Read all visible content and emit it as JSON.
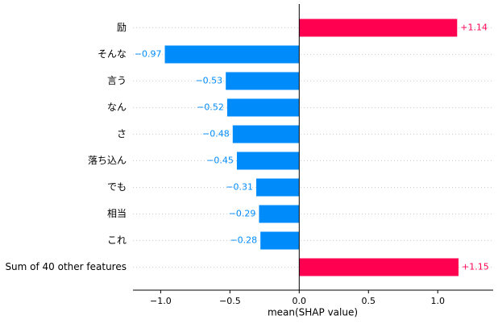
{
  "chart_data": {
    "type": "bar",
    "orientation": "horizontal",
    "categories": [
      "励",
      "そんな",
      "言う",
      "なん",
      "さ",
      "落ち込ん",
      "でも",
      "相当",
      "これ",
      "Sum of 40 other features"
    ],
    "values": [
      1.14,
      -0.97,
      -0.53,
      -0.52,
      -0.48,
      -0.45,
      -0.31,
      -0.29,
      -0.28,
      1.15
    ],
    "value_labels": [
      "+1.14",
      "−0.97",
      "−0.53",
      "−0.52",
      "−0.48",
      "−0.45",
      "−0.31",
      "−0.29",
      "−0.28",
      "+1.15"
    ],
    "color_positive": "#ff0051",
    "color_negative": "#008bfb",
    "xlabel": "mean(SHAP value)",
    "xlim": [
      -1.2,
      1.4
    ],
    "xticks": [
      {
        "value": -1.0,
        "label": "−1.0"
      },
      {
        "value": -0.5,
        "label": "−0.5"
      },
      {
        "value": 0.0,
        "label": "0.0"
      },
      {
        "value": 0.5,
        "label": "0.5"
      },
      {
        "value": 1.0,
        "label": "1.0"
      }
    ],
    "grid": true
  }
}
